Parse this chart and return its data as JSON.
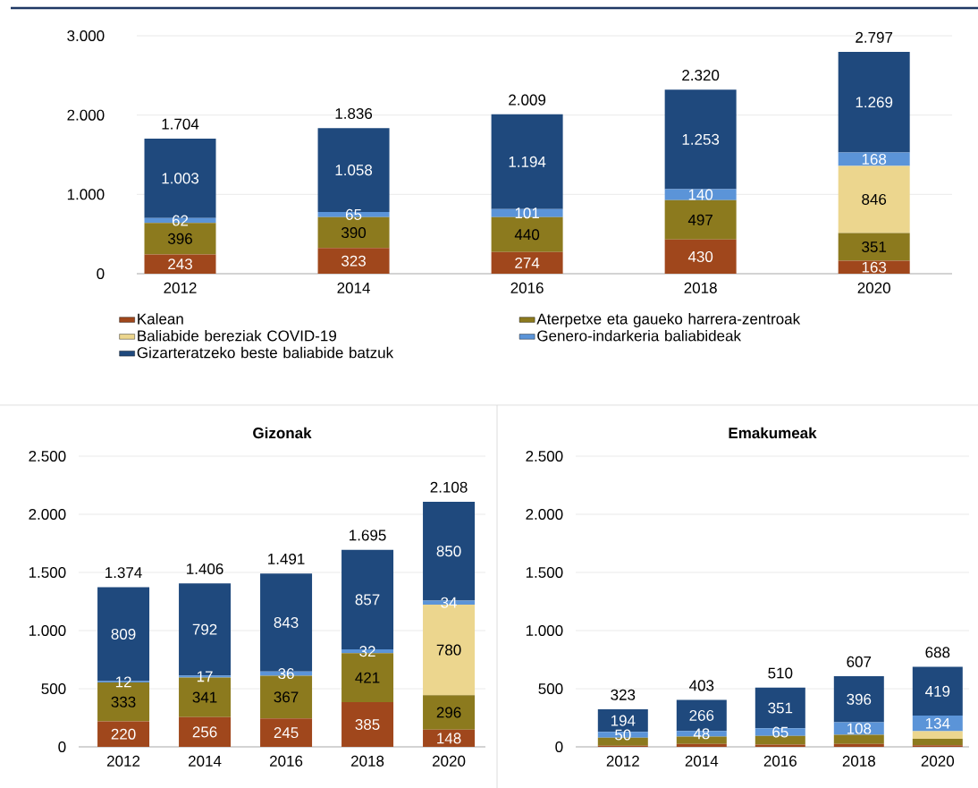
{
  "chart_data": [
    {
      "type": "bar",
      "stacked": true,
      "categories": [
        "2012",
        "2014",
        "2016",
        "2018",
        "2020"
      ],
      "grid": "y",
      "legend": "bottom",
      "ylim": [
        0,
        3000
      ],
      "yticks": [
        0,
        {
          "value": 1000,
          "label": "1.000"
        },
        {
          "value": 2000,
          "label": "2.000"
        },
        {
          "value": 3000,
          "label": "3.000"
        }
      ],
      "series": [
        {
          "name": "Kalean",
          "color": "#a0471c",
          "values": [
            243,
            323,
            274,
            430,
            163
          ],
          "value_labels": [
            "243",
            "323",
            "274",
            "430",
            "163"
          ]
        },
        {
          "name": "Aterpetxe eta gaueko harrera-zentroak",
          "color": "#8c7a1e",
          "values": [
            396,
            390,
            440,
            497,
            351
          ],
          "value_labels": [
            "396",
            "390",
            "440",
            "497",
            "351"
          ]
        },
        {
          "name": "Baliabide bereziak COVID-19",
          "color": "#ecd68e",
          "values": [
            null,
            null,
            null,
            null,
            846
          ],
          "value_labels": [
            null,
            null,
            null,
            null,
            "846"
          ]
        },
        {
          "name": "Genero-indarkeria baliabideak",
          "color": "#5b94d8",
          "values": [
            62,
            65,
            101,
            140,
            168
          ],
          "value_labels": [
            "62",
            "65",
            "101",
            "140",
            "168"
          ]
        },
        {
          "name": "Gizarteratzeko beste baliabide batzuk",
          "color": "#1f497d",
          "values": [
            1003,
            1058,
            1194,
            1253,
            1269
          ],
          "value_labels": [
            "1.003",
            "1.058",
            "1.194",
            "1.253",
            "1.269"
          ]
        }
      ],
      "totals": [
        "1.704",
        "1.836",
        "2.009",
        "2.320",
        "2.797"
      ]
    },
    {
      "type": "bar",
      "stacked": true,
      "title": "Gizonak",
      "categories": [
        "2012",
        "2014",
        "2016",
        "2018",
        "2020"
      ],
      "grid": "y",
      "ylim": [
        0,
        2500
      ],
      "yticks": [
        0,
        500,
        {
          "value": 1000,
          "label": "1.000"
        },
        {
          "value": 1500,
          "label": "1.500"
        },
        {
          "value": 2000,
          "label": "2.000"
        },
        {
          "value": 2500,
          "label": "2.500"
        }
      ],
      "series": [
        {
          "color": "#a0471c",
          "values": [
            220,
            256,
            245,
            385,
            148
          ],
          "value_labels": [
            "220",
            "256",
            "245",
            "385",
            "148"
          ]
        },
        {
          "color": "#8c7a1e",
          "values": [
            333,
            341,
            367,
            421,
            296
          ],
          "value_labels": [
            "333",
            "341",
            "367",
            "421",
            "296"
          ]
        },
        {
          "color": "#ecd68e",
          "values": [
            null,
            null,
            null,
            null,
            780
          ],
          "value_labels": [
            null,
            null,
            null,
            null,
            "780"
          ]
        },
        {
          "color": "#5b94d8",
          "values": [
            12,
            17,
            36,
            32,
            34
          ],
          "value_labels": [
            "12",
            "17",
            "36",
            "32",
            "34"
          ]
        },
        {
          "color": "#1f497d",
          "values": [
            809,
            792,
            843,
            857,
            850
          ],
          "value_labels": [
            "809",
            "792",
            "843",
            "857",
            "850"
          ]
        }
      ],
      "totals": [
        "1.374",
        "1.406",
        "1.491",
        "1.695",
        "2.108"
      ]
    },
    {
      "type": "bar",
      "stacked": true,
      "title": "Emakumeak",
      "categories": [
        "2012",
        "2014",
        "2016",
        "2018",
        "2020"
      ],
      "grid": "y",
      "ylim": [
        0,
        2500
      ],
      "yticks": [
        0,
        500,
        {
          "value": 1000,
          "label": "1.000"
        },
        {
          "value": 1500,
          "label": "1.500"
        },
        {
          "value": 2000,
          "label": "2.000"
        },
        {
          "value": 2500,
          "label": "2.500"
        }
      ],
      "series": [
        {
          "color": "#a0471c",
          "values": [
            10,
            25,
            20,
            25,
            14
          ]
        },
        {
          "color": "#8c7a1e",
          "values": [
            69,
            64,
            74,
            78,
            55
          ]
        },
        {
          "color": "#ecd68e",
          "values": [
            null,
            null,
            null,
            null,
            66
          ]
        },
        {
          "color": "#5b94d8",
          "values": [
            50,
            48,
            65,
            108,
            134
          ],
          "value_labels": [
            "50",
            "48",
            "65",
            "108",
            "134"
          ]
        },
        {
          "color": "#1f497d",
          "values": [
            194,
            266,
            351,
            396,
            419
          ],
          "value_labels": [
            "194",
            "266",
            "351",
            "396",
            "419"
          ]
        }
      ],
      "totals": [
        "323",
        "403",
        "510",
        "607",
        "688"
      ]
    }
  ]
}
